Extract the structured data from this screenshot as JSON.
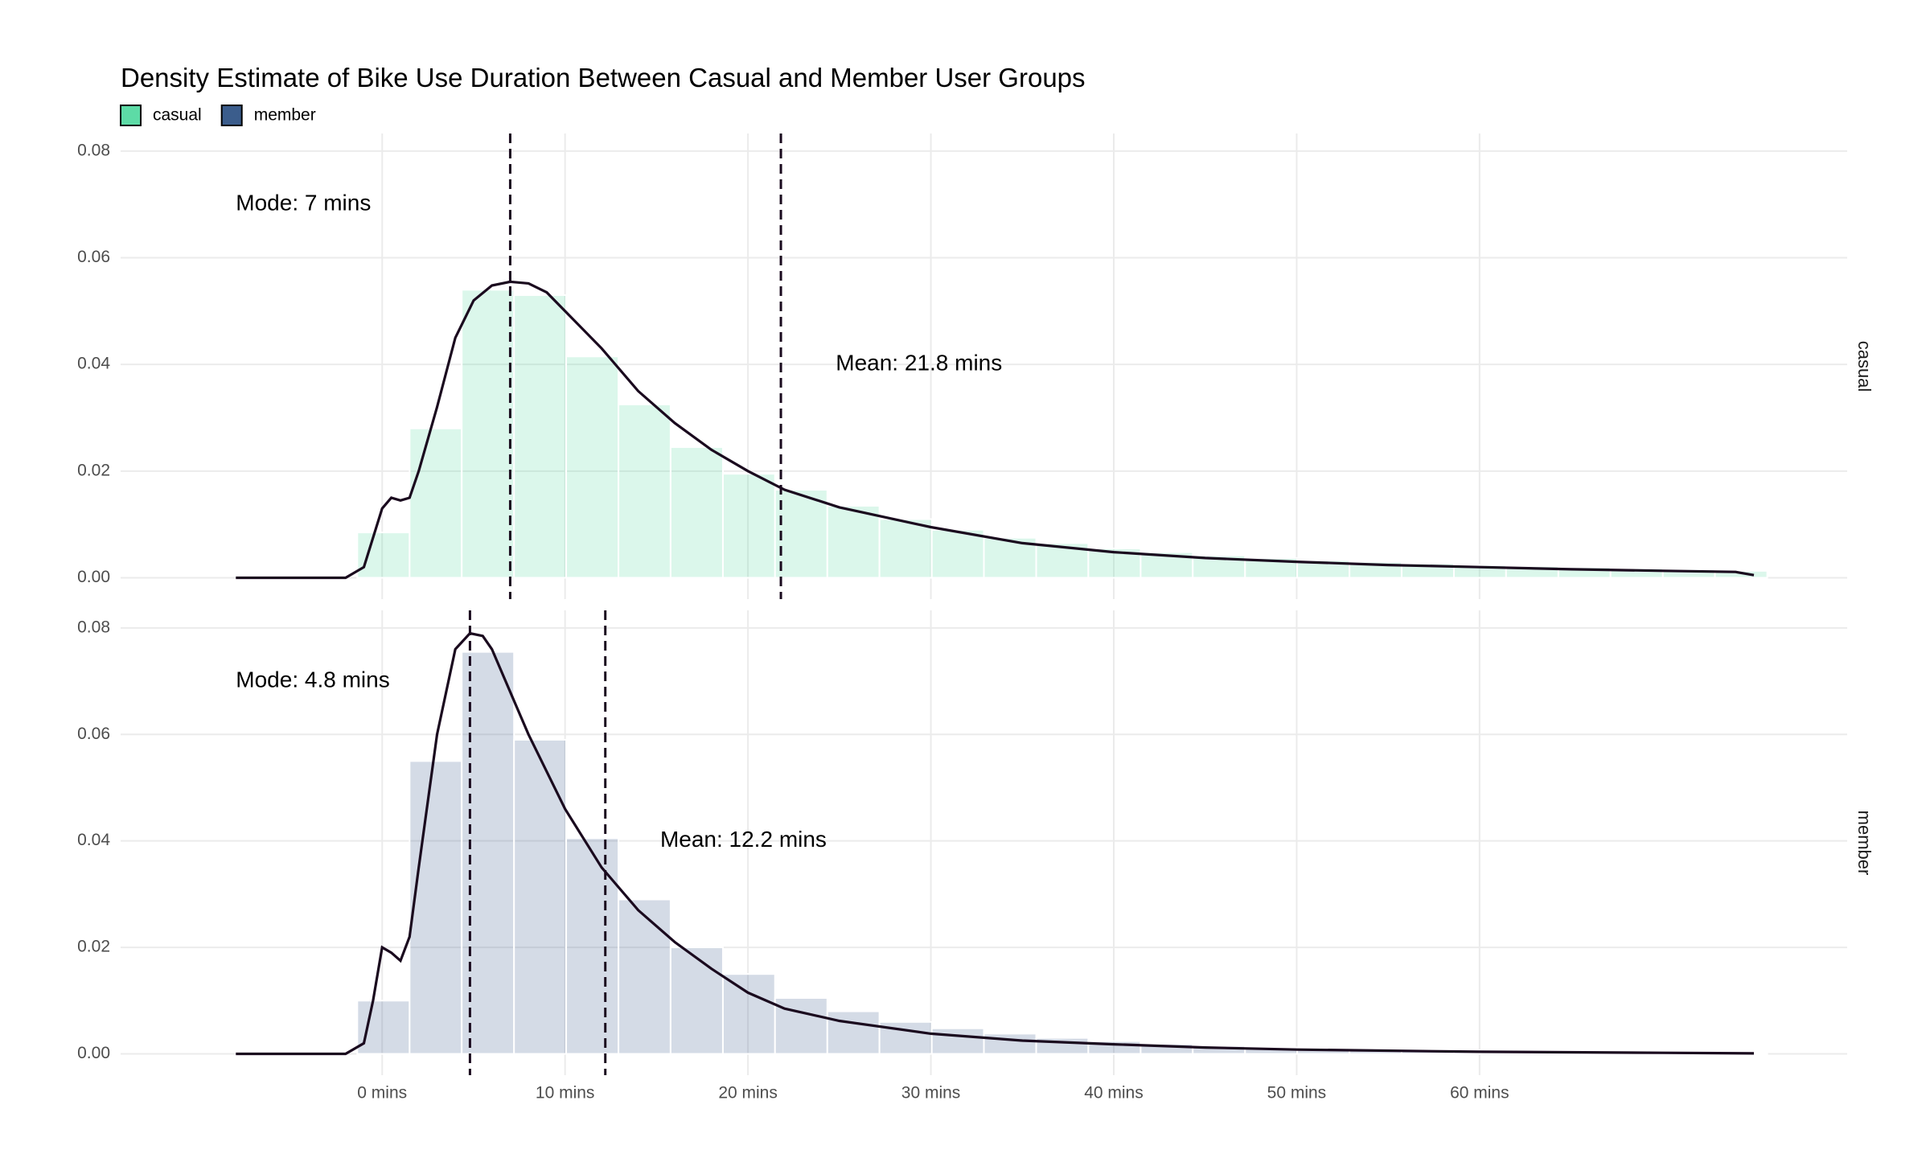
{
  "chart_data": {
    "type": "histogram",
    "title": "Density Estimate of Bike Use Duration Between Casual and Member User Groups",
    "xlim": [
      -14.3,
      80.1
    ],
    "xticks": [
      {
        "value": 0,
        "label": "0 mins"
      },
      {
        "value": 10,
        "label": "10 mins"
      },
      {
        "value": 20,
        "label": "20 mins"
      },
      {
        "value": 30,
        "label": "30 mins"
      },
      {
        "value": 40,
        "label": "40 mins"
      },
      {
        "value": 50,
        "label": "50 mins"
      },
      {
        "value": 60,
        "label": "60 mins"
      }
    ],
    "ylim": [
      -0.004,
      0.0833
    ],
    "yticks": [
      {
        "value": 0,
        "label": "0.00"
      },
      0.02,
      0.04,
      0.06,
      0.08
    ],
    "grid": true,
    "legend": "top-left",
    "bins": [
      -1.36,
      1.5,
      4.35,
      7.21,
      10.06,
      12.92,
      15.77,
      18.63,
      21.48,
      24.34,
      27.19,
      30.05,
      32.9,
      35.76,
      38.61,
      41.47,
      44.32,
      47.18,
      50.03,
      52.89,
      55.74,
      58.6,
      61.45,
      64.31,
      67.16,
      70.02,
      72.87,
      75.73
    ],
    "series": [
      {
        "name": "casual",
        "color": "#5ddba6",
        "values": [
          0.0085,
          0.028,
          0.054,
          0.053,
          0.0415,
          0.0325,
          0.0245,
          0.0195,
          0.0165,
          0.0135,
          0.011,
          0.009,
          0.0075,
          0.0065,
          0.0055,
          0.0048,
          0.0042,
          0.0037,
          0.0033,
          0.003,
          0.0027,
          0.0024,
          0.0022,
          0.002,
          0.0018,
          0.0016,
          0.0013
        ],
        "density_x": [
          -8,
          -2,
          -1,
          0,
          0.5,
          1,
          1.5,
          2,
          3,
          4,
          5,
          6,
          7,
          8,
          9,
          10,
          12,
          14,
          16,
          18,
          20,
          22,
          25,
          30,
          35,
          40,
          45,
          50,
          55,
          60,
          65,
          70,
          74,
          75
        ],
        "density_y": [
          0,
          0,
          0.002,
          0.013,
          0.015,
          0.0145,
          0.015,
          0.02,
          0.032,
          0.045,
          0.052,
          0.0548,
          0.0555,
          0.0552,
          0.0535,
          0.05,
          0.043,
          0.035,
          0.029,
          0.024,
          0.02,
          0.0165,
          0.0132,
          0.0095,
          0.0065,
          0.0048,
          0.0037,
          0.003,
          0.0024,
          0.002,
          0.0016,
          0.0013,
          0.0011,
          0.0005
        ],
        "mode": 7,
        "mean": 21.8,
        "mode_label": "Mode: 7 mins",
        "mean_label": "Mean: 21.8 mins"
      },
      {
        "name": "member",
        "color": "#3b5d8c",
        "values": [
          0.01,
          0.055,
          0.0755,
          0.059,
          0.0405,
          0.029,
          0.02,
          0.015,
          0.0105,
          0.008,
          0.006,
          0.0048,
          0.0038,
          0.003,
          0.0024,
          0.0019,
          0.0015,
          0.0012,
          0.001,
          0.0008,
          0.0007,
          0.0006,
          0.0005,
          0.0004,
          0.0003,
          0.0003,
          0.0002
        ],
        "density_x": [
          -8,
          -2,
          -1,
          -0.5,
          0,
          0.5,
          1,
          1.5,
          2,
          3,
          4,
          4.8,
          5.5,
          6,
          7,
          8,
          9,
          10,
          12,
          14,
          16,
          18,
          20,
          22,
          25,
          30,
          35,
          40,
          45,
          50,
          60,
          70,
          75
        ],
        "density_y": [
          0,
          0,
          0.002,
          0.01,
          0.02,
          0.019,
          0.0175,
          0.022,
          0.035,
          0.06,
          0.076,
          0.079,
          0.0785,
          0.076,
          0.068,
          0.06,
          0.053,
          0.046,
          0.035,
          0.027,
          0.021,
          0.016,
          0.0115,
          0.0085,
          0.0062,
          0.0038,
          0.0025,
          0.0018,
          0.0012,
          0.0008,
          0.0004,
          0.0002,
          0.0001
        ],
        "mode": 4.8,
        "mean": 12.2,
        "mode_label": "Mode: 4.8 mins",
        "mean_label": "Mean: 12.2 mins"
      }
    ]
  }
}
